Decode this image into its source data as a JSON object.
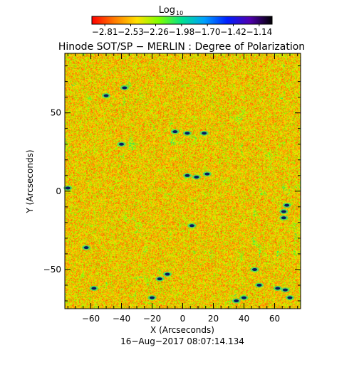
{
  "chart_data": {
    "type": "heatmap",
    "title": "Hinode SOT/SP − MERLIN : Degree of Polarization",
    "colorbar": {
      "label": "Log",
      "label_subscript": "10",
      "ticks": [
        -2.81,
        -2.53,
        -2.26,
        -1.98,
        -1.7,
        -1.42,
        -1.14
      ],
      "tick_labels": [
        "−2.81",
        "−2.53",
        "−2.26",
        "−1.98",
        "−1.70",
        "−1.42",
        "−1.14"
      ],
      "range": [
        -2.95,
        -1.0
      ],
      "colormap": [
        "#ff0000",
        "#ff7a00",
        "#ffe000",
        "#7cff00",
        "#00e090",
        "#00a0ff",
        "#0020ff",
        "#5000b0",
        "#000000"
      ]
    },
    "xlabel": "X (Arcseconds)",
    "ylabel": "Y (Arcseconds)",
    "xlim": [
      -77,
      77
    ],
    "ylim": [
      -75,
      88
    ],
    "xticks": [
      -60,
      -40,
      -20,
      0,
      20,
      40,
      60
    ],
    "yticks": [
      -50,
      0,
      50
    ],
    "xtick_labels": [
      "−60",
      "−40",
      "−20",
      "0",
      "20",
      "40",
      "60"
    ],
    "ytick_labels": [
      "−50",
      "0",
      "50"
    ],
    "background_log_value": -2.5,
    "dark_features": [
      {
        "x": -50,
        "y": 61
      },
      {
        "x": -38,
        "y": 66
      },
      {
        "x": -5,
        "y": 38
      },
      {
        "x": 3,
        "y": 37
      },
      {
        "x": 14,
        "y": 37
      },
      {
        "x": 3,
        "y": 10
      },
      {
        "x": 9,
        "y": 9
      },
      {
        "x": 16,
        "y": 11
      },
      {
        "x": 66,
        "y": -13
      },
      {
        "x": 66,
        "y": -17
      },
      {
        "x": 68,
        "y": -9
      },
      {
        "x": -75,
        "y": 2
      },
      {
        "x": -63,
        "y": -36
      },
      {
        "x": -58,
        "y": -62
      },
      {
        "x": -10,
        "y": -53
      },
      {
        "x": -15,
        "y": -56
      },
      {
        "x": 6,
        "y": -22
      },
      {
        "x": 50,
        "y": -60
      },
      {
        "x": 62,
        "y": -62
      },
      {
        "x": 67,
        "y": -63
      },
      {
        "x": 40,
        "y": -68
      },
      {
        "x": 70,
        "y": -68
      },
      {
        "x": -20,
        "y": -68
      },
      {
        "x": 35,
        "y": -70
      },
      {
        "x": 47,
        "y": -50
      },
      {
        "x": -40,
        "y": 30
      }
    ],
    "footer": "16−Aug−2017 08:07:14.134"
  }
}
